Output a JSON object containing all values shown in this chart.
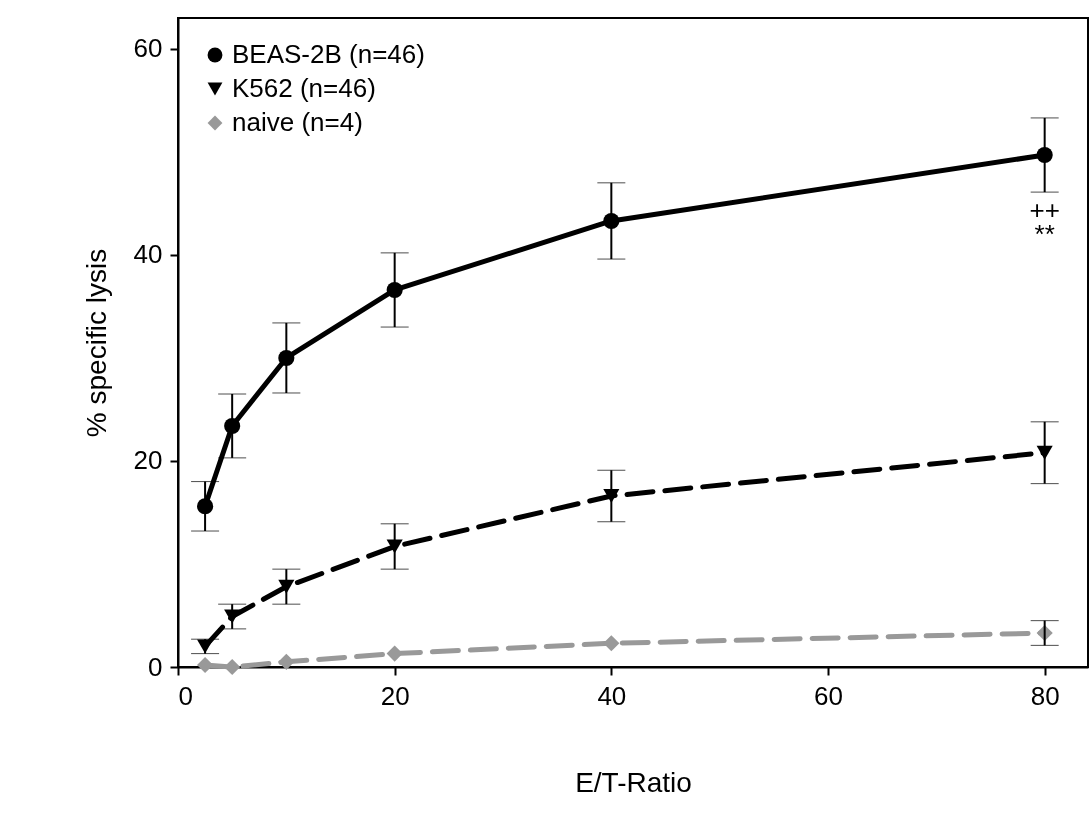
{
  "chart_data": {
    "type": "line",
    "xlabel": "E/T-Ratio",
    "ylabel": "% specific lysis",
    "x": [
      2.5,
      5,
      10,
      20,
      40,
      80
    ],
    "xlim": [
      0,
      84
    ],
    "xticks": [
      0,
      20,
      40,
      60,
      80
    ],
    "ylim": [
      0,
      63
    ],
    "yticks": [
      0,
      20,
      40,
      60
    ],
    "legend": "top left",
    "grid": false,
    "series": [
      {
        "name": "BEAS-2B  (n=46)",
        "color": "#000000",
        "marker": "circle",
        "line_style": "solid",
        "values": [
          15.6,
          23.4,
          30.0,
          36.6,
          43.3,
          49.7
        ],
        "errors": [
          2.4,
          3.1,
          3.4,
          3.6,
          3.7,
          3.6
        ]
      },
      {
        "name": "K562  (n=46)",
        "color": "#000000",
        "marker": "triangle",
        "line_style": "dashed",
        "values": [
          2.0,
          4.9,
          7.8,
          11.7,
          16.6,
          20.8
        ],
        "errors": [
          0.7,
          1.2,
          1.7,
          2.2,
          2.5,
          3.0
        ]
      },
      {
        "name": "naive  (n=4)",
        "color": "#999999",
        "marker": "diamond",
        "line_style": "dashed",
        "values": [
          0.2,
          0,
          0.5,
          1.3,
          2.3,
          3.3
        ],
        "errors": [
          null,
          null,
          null,
          null,
          null,
          1.2
        ]
      }
    ],
    "annotations": [
      "++",
      "**"
    ]
  }
}
